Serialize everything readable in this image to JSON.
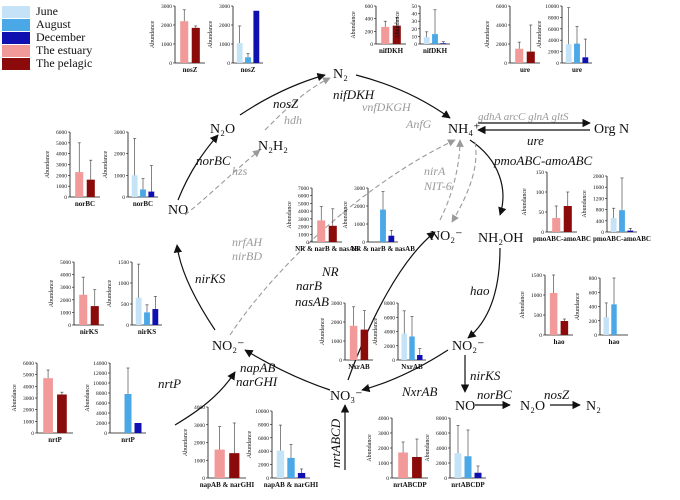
{
  "legend": [
    {
      "label": "June",
      "color": "#c5e3f6"
    },
    {
      "label": "August",
      "color": "#4aa8e6"
    },
    {
      "label": "December",
      "color": "#1010b0"
    },
    {
      "label": "The estuary",
      "color": "#f29a9a"
    },
    {
      "label": "The pelagic",
      "color": "#8b0a0a"
    }
  ],
  "axis_label": "Abundance",
  "compounds": {
    "n2_top": "N₂",
    "nh4": "NH₄⁺",
    "org_n": "Org N",
    "n2o_left": "N₂O",
    "n2h2": "N₂H₂",
    "no_left": "NO",
    "no2_center": "NO₂⁻",
    "nh2oh": "NH₂OH",
    "no2_right": "NO₂⁻",
    "no2_bottom": "NO₂⁻",
    "no3": "NO₃⁻",
    "no_bottom": "NO",
    "n2o_bottom": "N₂O",
    "n2_bottom": "N₂"
  },
  "genes": {
    "noszl": "nosZ",
    "nifdkh": "nifDKH",
    "vnfdkgh": "vnfDKGH",
    "anfg": "AnfG",
    "hdh": "hdh",
    "norbc_left": "norBC",
    "hzs": "hzs",
    "nrfah": "nrfAH",
    "nirbd": "nirBD",
    "nirks_left": "nirKS",
    "gdha": "gdhA arcC glnA gltS",
    "ure": "ure",
    "pmoabc": "pmoABC-amoABC",
    "nira": "nirA",
    "nit6": "NIT-6",
    "nr": "NR",
    "narb": "narB",
    "nasab": "nasAB",
    "hao": "hao",
    "napab": "napAB",
    "nargh": "narGHI",
    "nrtp": "nrtP",
    "nxrab": "NxrAB",
    "nrtabcd": "nrtABCD",
    "nirks_bottom": "nirKS",
    "norbc_bottom": "norBC",
    "nosz_bottom": "nosZ"
  },
  "chart_data": [
    {
      "type": "bar",
      "id": "nosZ-pair",
      "label": "nosZ",
      "categories": [
        "The estuary",
        "The pelagic"
      ],
      "values": [
        2200,
        1850
      ],
      "errors": [
        600,
        100
      ],
      "ylim": [
        0,
        3000
      ],
      "ticks": [
        0,
        1000,
        2000,
        3000
      ]
    },
    {
      "type": "bar",
      "id": "nosZ-season",
      "label": "nosZ",
      "categories": [
        "June",
        "August",
        "December"
      ],
      "values": [
        1050,
        300,
        2750
      ],
      "errors": [
        900,
        200,
        0
      ],
      "ylim": [
        0,
        3000
      ],
      "ticks": [
        0,
        1000,
        2000,
        3000
      ]
    },
    {
      "type": "bar",
      "id": "nifDKH-pair",
      "label": "nifDKH",
      "categories": [
        "The estuary",
        "The pelagic"
      ],
      "values": [
        270,
        290
      ],
      "errors": [
        90,
        130
      ],
      "ylim": [
        0,
        600
      ],
      "ticks": [
        0,
        200,
        400,
        600
      ]
    },
    {
      "type": "bar",
      "id": "nifDKH-season",
      "label": "nifDKH",
      "categories": [
        "June",
        "August",
        "December"
      ],
      "values": [
        9,
        13,
        1
      ],
      "errors": [
        7,
        32,
        2
      ],
      "ylim": [
        0,
        50
      ],
      "ticks": [
        0,
        10,
        20,
        30,
        40,
        50
      ]
    },
    {
      "type": "bar",
      "id": "ure-pair",
      "label": "ure",
      "categories": [
        "The estuary",
        "The pelagic"
      ],
      "values": [
        1500,
        1200
      ],
      "errors": [
        700,
        2800
      ],
      "ylim": [
        0,
        6000
      ],
      "ticks": [
        0,
        2000,
        4000,
        6000
      ]
    },
    {
      "type": "bar",
      "id": "ure-season",
      "label": "ure",
      "categories": [
        "June",
        "August",
        "December"
      ],
      "values": [
        3300,
        3400,
        1000
      ],
      "errors": [
        6400,
        3000,
        3200
      ],
      "ylim": [
        0,
        10000
      ],
      "ticks": [
        0,
        2000,
        4000,
        6000,
        8000,
        10000
      ]
    },
    {
      "type": "bar",
      "id": "norBC-pair",
      "label": "norBC",
      "categories": [
        "The estuary",
        "The pelagic"
      ],
      "values": [
        2300,
        1600
      ],
      "errors": [
        2700,
        1800
      ],
      "ylim": [
        0,
        6000
      ],
      "ticks": [
        0,
        1000,
        2000,
        3000,
        4000,
        5000,
        6000
      ]
    },
    {
      "type": "bar",
      "id": "norBC-season",
      "label": "norBC",
      "categories": [
        "June",
        "August",
        "December"
      ],
      "values": [
        1000,
        350,
        250
      ],
      "errors": [
        1700,
        500,
        1200
      ],
      "ylim": [
        0,
        3000
      ],
      "ticks": [
        0,
        1000,
        2000,
        3000
      ]
    },
    {
      "type": "bar",
      "id": "NR-pair",
      "label": "NR & narB & nasAB",
      "categories": [
        "The estuary",
        "The pelagic"
      ],
      "values": [
        2800,
        2100
      ],
      "errors": [
        1800,
        2200
      ],
      "ylim": [
        0,
        7000
      ],
      "ticks": [
        0,
        1000,
        2000,
        3000,
        4000,
        5000,
        6000,
        7000
      ]
    },
    {
      "type": "bar",
      "id": "NR-season",
      "label": "NR & narB & nasAB",
      "categories": [
        "June",
        "August",
        "December"
      ],
      "values": [
        0,
        1800,
        350
      ],
      "errors": [
        0,
        1000,
        300
      ],
      "ylim": [
        0,
        3000
      ],
      "ticks": [
        0,
        1000,
        2000,
        3000
      ]
    },
    {
      "type": "bar",
      "id": "pmo-pair",
      "label": "pmoABC-amoABC",
      "categories": [
        "The estuary",
        "The pelagic"
      ],
      "values": [
        35,
        65
      ],
      "errors": [
        30,
        35
      ],
      "ylim": [
        0,
        150
      ],
      "ticks": [
        0,
        50,
        100,
        150
      ]
    },
    {
      "type": "bar",
      "id": "pmo-season",
      "label": "pmoABC-amoABC",
      "categories": [
        "June",
        "August",
        "December"
      ],
      "values": [
        500,
        780,
        50
      ],
      "errors": [
        350,
        1150,
        80
      ],
      "ylim": [
        0,
        2000
      ],
      "ticks": [
        0,
        400,
        800,
        1200,
        1600,
        2000
      ]
    },
    {
      "type": "bar",
      "id": "nirKS-pair",
      "label": "nirKS",
      "categories": [
        "The estuary",
        "The pelagic"
      ],
      "values": [
        2400,
        1500
      ],
      "errors": [
        1400,
        1300
      ],
      "ylim": [
        0,
        5000
      ],
      "ticks": [
        0,
        1000,
        2000,
        3000,
        4000,
        5000
      ]
    },
    {
      "type": "bar",
      "id": "nirKS-season",
      "label": "nirKS",
      "categories": [
        "June",
        "August",
        "December"
      ],
      "values": [
        650,
        300,
        380
      ],
      "errors": [
        800,
        180,
        300
      ],
      "ylim": [
        0,
        1500
      ],
      "ticks": [
        0,
        500,
        1000,
        1500
      ]
    },
    {
      "type": "bar",
      "id": "hao-pair",
      "label": "hao",
      "categories": [
        "The estuary",
        "The pelagic"
      ],
      "values": [
        1050,
        350
      ],
      "errors": [
        1000,
        50
      ],
      "ylim": [
        0,
        1500
      ],
      "ticks": [
        0,
        500,
        1000,
        1500
      ]
    },
    {
      "type": "bar",
      "id": "hao-season",
      "label": "hao",
      "categories": [
        "June",
        "August",
        "December"
      ],
      "values": [
        250,
        430,
        0
      ],
      "errors": [
        200,
        500,
        0
      ],
      "ylim": [
        0,
        800
      ],
      "ticks": [
        0,
        200,
        400,
        600,
        800
      ]
    },
    {
      "type": "bar",
      "id": "nxr-pair",
      "label": "NxrAB",
      "categories": [
        "The estuary",
        "The pelagic"
      ],
      "values": [
        1800,
        1600
      ],
      "errors": [
        1000,
        1000
      ],
      "ylim": [
        0,
        3000
      ],
      "ticks": [
        0,
        1000,
        2000,
        3000
      ]
    },
    {
      "type": "bar",
      "id": "nxr-season",
      "label": "NxrAB",
      "categories": [
        "June",
        "August",
        "December"
      ],
      "values": [
        3700,
        3300,
        700
      ],
      "errors": [
        3200,
        2800,
        900
      ],
      "ylim": [
        0,
        8000
      ],
      "ticks": [
        0,
        2000,
        4000,
        6000,
        8000
      ]
    },
    {
      "type": "bar",
      "id": "nrtP-pair",
      "label": "nrtP",
      "categories": [
        "The estuary",
        "The pelagic"
      ],
      "values": [
        4700,
        3300
      ],
      "errors": [
        700,
        200
      ],
      "ylim": [
        0,
        6000
      ],
      "ticks": [
        0,
        1000,
        2000,
        3000,
        4000,
        5000,
        6000
      ]
    },
    {
      "type": "bar",
      "id": "nrtP-season",
      "label": "nrtP",
      "categories": [
        "June",
        "August",
        "December"
      ],
      "values": [
        0,
        7800,
        2000
      ],
      "errors": [
        0,
        5200,
        0
      ],
      "ylim": [
        0,
        14000
      ],
      "ticks": [
        0,
        2000,
        4000,
        6000,
        8000,
        10000,
        12000,
        14000
      ]
    },
    {
      "type": "bar",
      "id": "napAB-pair",
      "label": "napAB & narGHI",
      "categories": [
        "The estuary",
        "The pelagic"
      ],
      "values": [
        1600,
        1400
      ],
      "errors": [
        1300,
        1700
      ],
      "ylim": [
        0,
        4000
      ],
      "ticks": [
        0,
        1000,
        2000,
        3000,
        4000
      ]
    },
    {
      "type": "bar",
      "id": "napAB-season",
      "label": "napAB & narGHI",
      "categories": [
        "June",
        "August",
        "December"
      ],
      "values": [
        4100,
        3000,
        750
      ],
      "errors": [
        3800,
        2000,
        600
      ],
      "ylim": [
        0,
        10000
      ],
      "ticks": [
        0,
        2000,
        4000,
        6000,
        8000,
        10000
      ]
    },
    {
      "type": "bar",
      "id": "nrtABCD-pair",
      "label": "nrtABCDP",
      "categories": [
        "The estuary",
        "The pelagic"
      ],
      "values": [
        1700,
        1400
      ],
      "errors": [
        700,
        1200
      ],
      "ylim": [
        0,
        4000
      ],
      "ticks": [
        0,
        1000,
        2000,
        3000,
        4000
      ]
    },
    {
      "type": "bar",
      "id": "nrtABCD-season",
      "label": "nrtABCDP",
      "categories": [
        "June",
        "August",
        "December"
      ],
      "values": [
        3300,
        2900,
        700
      ],
      "errors": [
        3700,
        3500,
        900
      ],
      "ylim": [
        0,
        8000
      ],
      "ticks": [
        0,
        2000,
        4000,
        6000,
        8000
      ]
    }
  ]
}
